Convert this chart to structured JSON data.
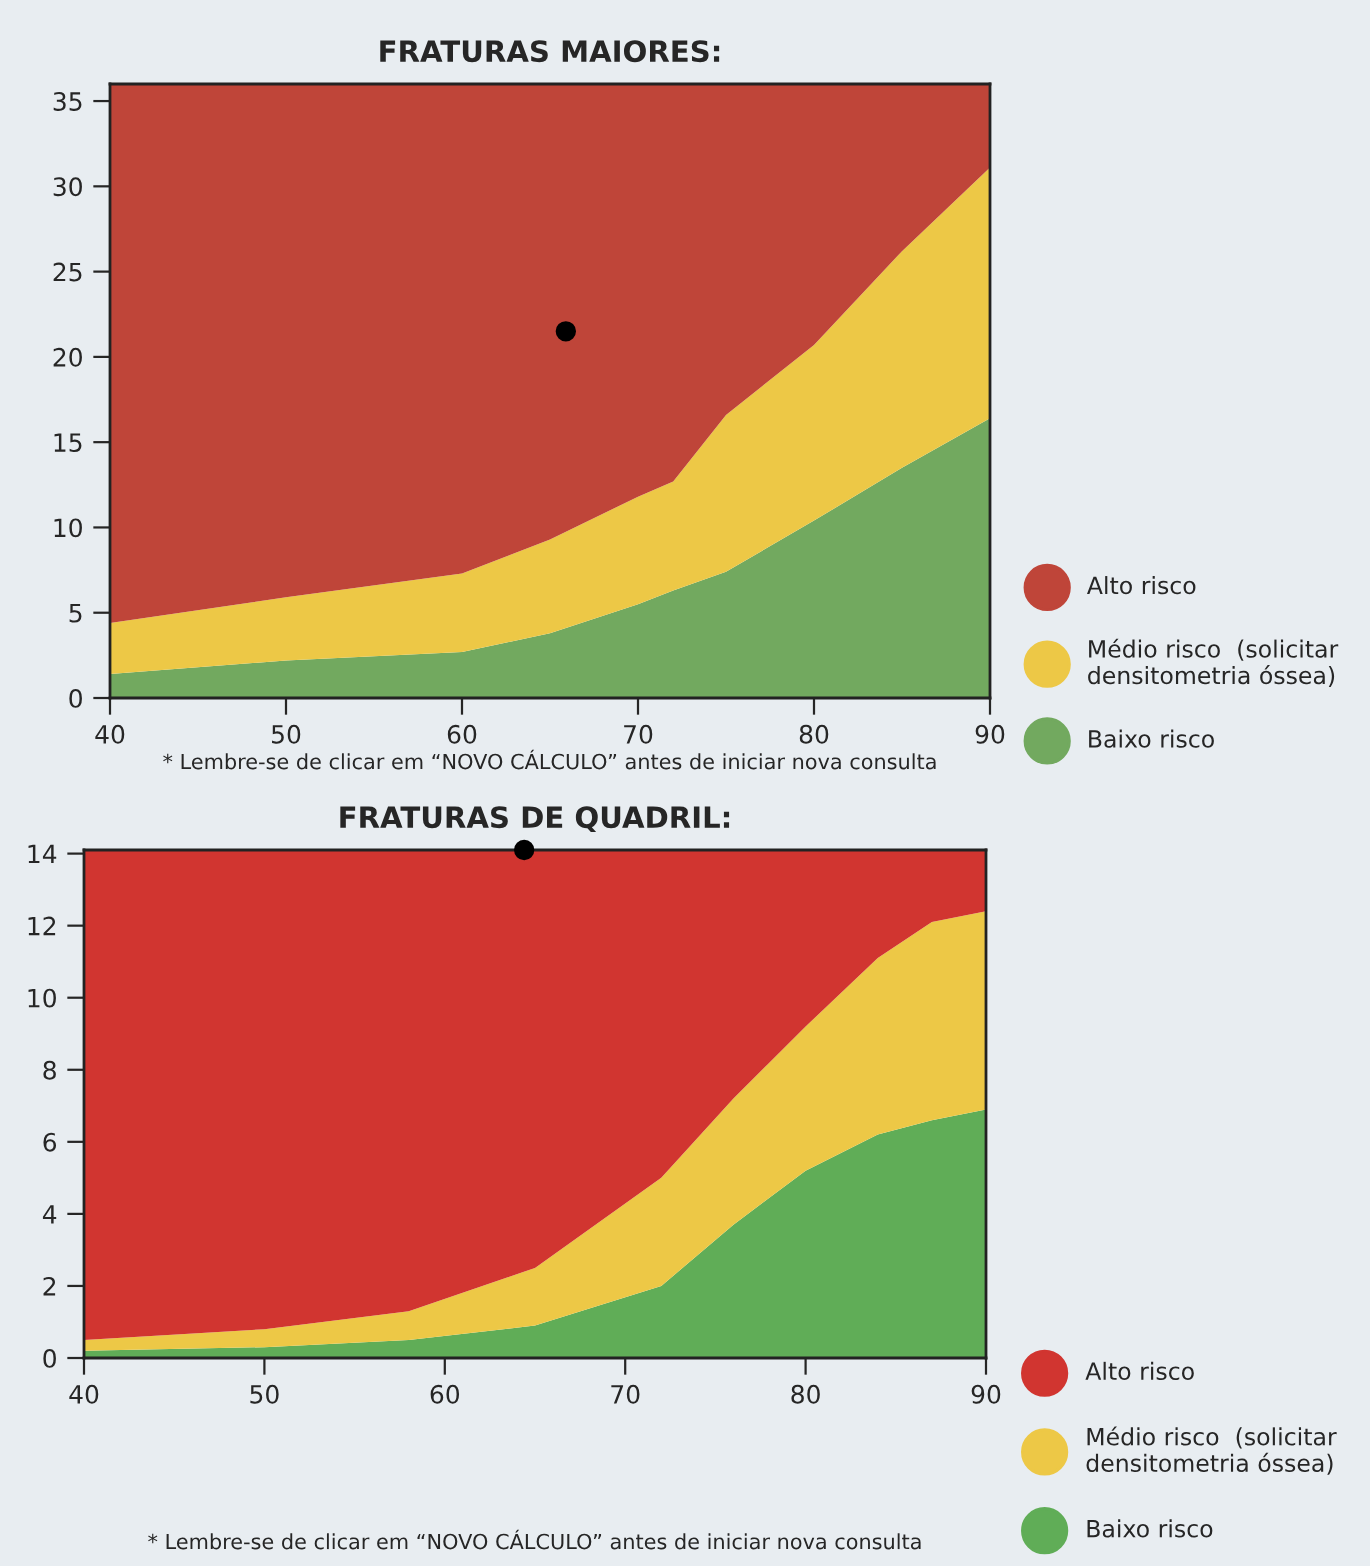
{
  "chart_data": [
    {
      "type": "area",
      "title": "FRATURAS MAIORES:",
      "stacked": true,
      "x": [
        40,
        50,
        60,
        65,
        70,
        72,
        75,
        80,
        85,
        90
      ],
      "xlim": [
        40,
        90
      ],
      "xticks": [
        40,
        50,
        60,
        70,
        80,
        90
      ],
      "ylim": [
        0,
        36
      ],
      "yticks": [
        0,
        5,
        10,
        15,
        20,
        25,
        30,
        35
      ],
      "grid": false,
      "legend": "right",
      "series": [
        {
          "name": "Baixo risco",
          "color": "#72a95f",
          "values": [
            1.4,
            2.2,
            2.7,
            3.8,
            5.5,
            6.3,
            7.4,
            10.4,
            13.5,
            16.4
          ]
        },
        {
          "name": "Médio risco  (solicitar densitometria óssea)",
          "color": "#edc846",
          "values": [
            3.0,
            3.7,
            4.6,
            5.5,
            6.3,
            6.4,
            9.2,
            10.3,
            12.7,
            14.7
          ]
        },
        {
          "name": "Alto risco",
          "color": "#bf4539",
          "values": [
            31.6,
            30.1,
            28.7,
            26.7,
            24.2,
            23.3,
            19.4,
            15.3,
            9.8,
            4.9
          ]
        },
        {
          "type": "scatter",
          "color": "#000000",
          "x": [
            65.9
          ],
          "values": [
            21.5
          ],
          "marker": "circle"
        }
      ],
      "annotations": [
        "* Lembre-se de clicar em “NOVO CÁLCULO” antes de iniciar nova consulta"
      ]
    },
    {
      "type": "area",
      "title": "FRATURAS DE QUADRIL:",
      "stacked": true,
      "x": [
        40,
        50,
        58,
        65,
        72,
        76,
        80,
        84,
        87,
        90
      ],
      "xlim": [
        40,
        90
      ],
      "xticks": [
        40,
        50,
        60,
        70,
        80,
        90
      ],
      "ylim": [
        0,
        14.1
      ],
      "yticks": [
        0,
        2,
        4,
        6,
        8,
        10,
        12,
        14
      ],
      "grid": false,
      "legend": "right",
      "series": [
        {
          "name": "Baixo risco",
          "color": "#60ad57",
          "values": [
            0.2,
            0.3,
            0.5,
            0.9,
            2.0,
            3.7,
            5.2,
            6.2,
            6.6,
            6.9
          ]
        },
        {
          "name": "Médio risco  (solicitar densitometria óssea)",
          "color": "#edc846",
          "values": [
            0.3,
            0.5,
            0.8,
            1.6,
            3.0,
            3.5,
            4.0,
            4.9,
            5.5,
            5.5
          ]
        },
        {
          "name": "Alto risco",
          "color": "#d13530",
          "values": [
            13.6,
            13.3,
            12.8,
            11.6,
            9.1,
            6.9,
            4.9,
            3.0,
            2.0,
            1.7
          ]
        },
        {
          "type": "scatter",
          "color": "#000000",
          "x": [
            64.4
          ],
          "values": [
            14.1
          ],
          "marker": "circle"
        }
      ],
      "annotations": [
        "* Lembre-se de clicar em “NOVO CÁLCULO” antes de iniciar nova consulta"
      ]
    }
  ]
}
